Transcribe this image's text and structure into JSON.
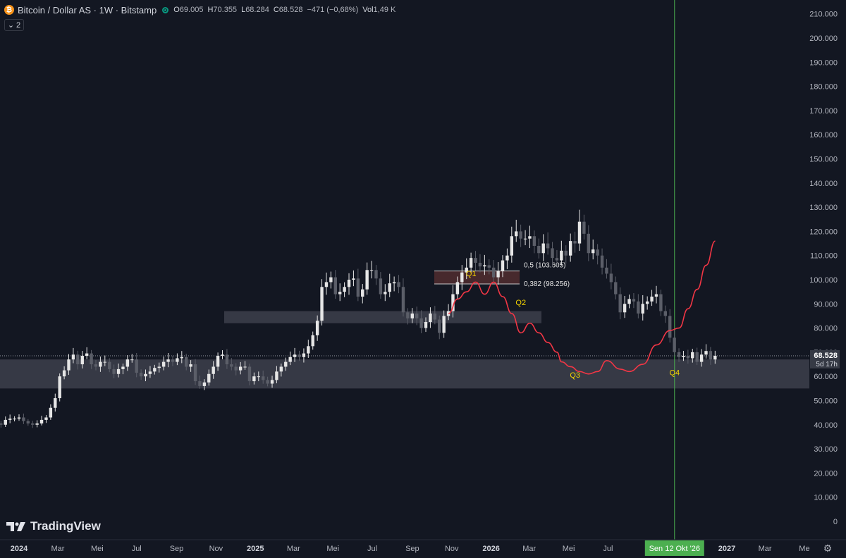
{
  "header": {
    "title": "Bitcoin / Dollar AS · 1W · Bitstamp",
    "btc_symbol": "₿",
    "ohlc": [
      {
        "key": "O",
        "value": "69.005"
      },
      {
        "key": "H",
        "value": "70.355"
      },
      {
        "key": "L",
        "value": "68.284"
      },
      {
        "key": "C",
        "value": "68.528"
      },
      {
        "key": "",
        "value": "−471 (−0,68%)"
      },
      {
        "key": "Vol",
        "value": "1,49 K"
      }
    ]
  },
  "collapse_button": {
    "label": "2"
  },
  "brand": {
    "name": "TradingView"
  },
  "settings_icon": "gear-icon",
  "colors": {
    "background": "#131722",
    "bull": "#e6e6e6",
    "bear": "#5b5e68",
    "projection": "#f23645",
    "zone": "#434651",
    "fib_zone": "#4a2a2e",
    "vline": "#4caf50",
    "label_yellow": "#f5d400"
  },
  "price_axis": {
    "labels": [
      "210.000",
      "200.000",
      "190.000",
      "180.000",
      "170.000",
      "160.000",
      "150.000",
      "140.000",
      "130.000",
      "120.000",
      "110.000",
      "100.000",
      "90.000",
      "80.000",
      "70.000",
      "60.000",
      "50.000",
      "40.000",
      "30.000",
      "20.000",
      "10.000",
      "0"
    ],
    "current_price": "68.528",
    "countdown": "5d 17h"
  },
  "time_axis": {
    "labels": [
      {
        "text": "2024",
        "bold": true,
        "date": "2024-01"
      },
      {
        "text": "Mar",
        "bold": false,
        "date": "2024-03"
      },
      {
        "text": "Mei",
        "bold": false,
        "date": "2024-05"
      },
      {
        "text": "Jul",
        "bold": false,
        "date": "2024-07"
      },
      {
        "text": "Sep",
        "bold": false,
        "date": "2024-09"
      },
      {
        "text": "Nov",
        "bold": false,
        "date": "2024-11"
      },
      {
        "text": "2025",
        "bold": true,
        "date": "2025-01"
      },
      {
        "text": "Mar",
        "bold": false,
        "date": "2025-03"
      },
      {
        "text": "Mei",
        "bold": false,
        "date": "2025-05"
      },
      {
        "text": "Jul",
        "bold": false,
        "date": "2025-07"
      },
      {
        "text": "Sep",
        "bold": false,
        "date": "2025-09"
      },
      {
        "text": "Nov",
        "bold": false,
        "date": "2025-11"
      },
      {
        "text": "2026",
        "bold": true,
        "date": "2026-01"
      },
      {
        "text": "Mar",
        "bold": false,
        "date": "2026-03"
      },
      {
        "text": "Mei",
        "bold": false,
        "date": "2026-05"
      },
      {
        "text": "Jul",
        "bold": false,
        "date": "2026-07"
      },
      {
        "text": "2027",
        "bold": true,
        "date": "2027-01"
      },
      {
        "text": "Mar",
        "bold": false,
        "date": "2027-03"
      },
      {
        "text": "Me",
        "bold": false,
        "date": "2027-05"
      }
    ],
    "highlight_label": "Sen 12 Okt '26"
  },
  "chart_data": {
    "type": "candlestick",
    "interval": "1W",
    "y_range": [
      0,
      215000
    ],
    "date_range": [
      "2023-11-27",
      "2027-06-01"
    ],
    "candles_close": [
      40500,
      40000,
      42000,
      42500,
      42500,
      43000,
      41500,
      40500,
      40000,
      40500,
      42000,
      43000,
      47000,
      51000,
      60000,
      62500,
      67000,
      69000,
      65000,
      68500,
      69500,
      65000,
      64000,
      66000,
      66000,
      63000,
      61000,
      63000,
      64000,
      67000,
      67000,
      61500,
      60000,
      61000,
      62000,
      63500,
      64000,
      66000,
      67000,
      66000,
      67500,
      68000,
      64000,
      65000,
      58000,
      56000,
      57500,
      61000,
      64000,
      68500,
      69000,
      65000,
      64000,
      62500,
      64000,
      64000,
      58000,
      60000,
      60000,
      58500,
      57000,
      58500,
      62000,
      64000,
      66000,
      68000,
      69000,
      68000,
      69500,
      72500,
      77000,
      83000,
      97000,
      99000,
      101000,
      94000,
      95000,
      97000,
      100000,
      100500,
      93000,
      96000,
      104000,
      104000,
      100500,
      94000,
      95000,
      98500,
      99000,
      97000,
      86500,
      84000,
      86000,
      84000,
      80000,
      82500,
      86000,
      83500,
      78000,
      85000,
      87000,
      94000,
      99000,
      103000,
      105000,
      109000,
      107000,
      105500,
      106000,
      105000,
      101000,
      103500,
      108000,
      110000,
      118000,
      120000,
      117000,
      117000,
      118000,
      114000,
      111000,
      115000,
      113000,
      109000,
      108000,
      112000,
      110000,
      116000,
      115000,
      124000,
      119000,
      111000,
      112500,
      110000,
      105000,
      102500,
      99000,
      94000,
      86500,
      90000,
      92000,
      91000,
      86000,
      90000,
      91000,
      93000,
      94000,
      87000,
      85000,
      76000,
      70000,
      68000,
      68500,
      67500,
      70000,
      66000,
      69000,
      70500,
      67000,
      68528
    ],
    "zones": [
      {
        "name": "Fib 0.5–0.382",
        "from": 98256,
        "to": 103605
      },
      {
        "name": "Upper support",
        "from": 82000,
        "to": 87000
      },
      {
        "name": "Lower support",
        "from": 55000,
        "to": 67000
      }
    ],
    "fib_levels": [
      {
        "label": "0,5 (103.605)",
        "value": 103605
      },
      {
        "label": "0,382 (98.256)",
        "value": 98256
      }
    ],
    "projection_path": [
      [
        "2025-10-27",
        86000
      ],
      [
        "2025-11-10",
        92000
      ],
      [
        "2025-11-24",
        95000
      ],
      [
        "2025-12-08",
        99000
      ],
      [
        "2025-12-22",
        94000
      ],
      [
        "2026-01-05",
        99000
      ],
      [
        "2026-01-19",
        93000
      ],
      [
        "2026-02-02",
        86000
      ],
      [
        "2026-02-16",
        78000
      ],
      [
        "2026-03-02",
        82000
      ],
      [
        "2026-03-16",
        78000
      ],
      [
        "2026-03-30",
        74000
      ],
      [
        "2026-04-13",
        70000
      ],
      [
        "2026-04-20",
        66000
      ],
      [
        "2026-05-04",
        64000
      ],
      [
        "2026-05-18",
        62000
      ],
      [
        "2026-06-01",
        61000
      ],
      [
        "2026-06-15",
        62000
      ],
      [
        "2026-06-29",
        66500
      ],
      [
        "2026-07-20",
        63000
      ],
      [
        "2026-08-03",
        62000
      ],
      [
        "2026-08-24",
        65000
      ],
      [
        "2026-09-14",
        73000
      ],
      [
        "2026-10-05",
        79000
      ],
      [
        "2026-10-19",
        80000
      ],
      [
        "2026-11-02",
        88000
      ],
      [
        "2026-11-16",
        96000
      ],
      [
        "2026-11-30",
        106000
      ],
      [
        "2026-12-14",
        116000
      ]
    ],
    "annotations": [
      {
        "label": "Q1",
        "date": "2025-12-01",
        "value": 101500
      },
      {
        "label": "Q2",
        "date": "2026-02-16",
        "value": 89500
      },
      {
        "label": "Q3",
        "date": "2026-05-11",
        "value": 59500
      },
      {
        "label": "Q4",
        "date": "2026-10-12",
        "value": 60500
      }
    ],
    "vertical_line_date": "2026-10-12",
    "current_price": 68528,
    "grid": false
  }
}
